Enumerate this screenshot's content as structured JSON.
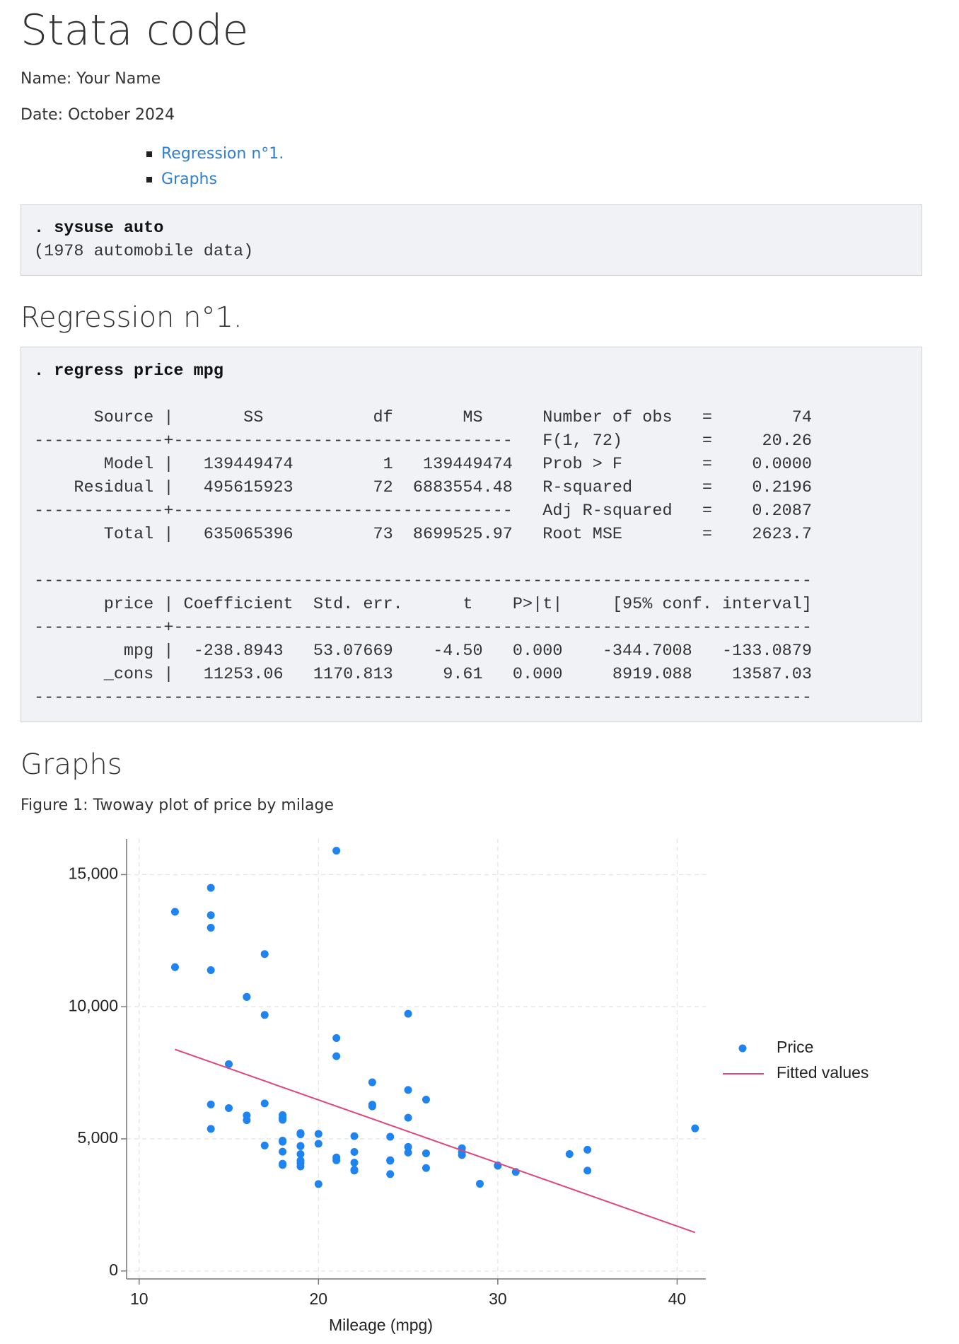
{
  "header": {
    "title": "Stata code",
    "name": "Name: Your Name",
    "date": "Date: October 2024"
  },
  "toc": [
    "Regression n°1.",
    "Graphs"
  ],
  "intro_output": {
    "command": ". sysuse auto",
    "lines": [
      "(1978 automobile data)"
    ]
  },
  "regression": {
    "heading": "Regression n°1.",
    "command": ". regress price mpg",
    "anova_lines": [
      "      Source |       SS           df       MS      Number of obs   =        74",
      "-------------+----------------------------------   F(1, 72)        =     20.26",
      "       Model |   139449474         1   139449474   Prob > F        =    0.0000",
      "    Residual |   495615923        72  6883554.48   R-squared       =    0.2196",
      "-------------+----------------------------------   Adj R-squared   =    0.2087",
      "       Total |   635065396        73  8699525.97   Root MSE        =    2623.7"
    ],
    "coef_lines": [
      "------------------------------------------------------------------------------",
      "       price | Coefficient  Std. err.      t    P>|t|     [95% conf. interval]",
      "-------------+----------------------------------------------------------------",
      "         mpg |  -238.8943   53.07669    -4.50   0.000    -344.7008   -133.0879",
      "       _cons |   11253.06   1170.813     9.61   0.000     8919.088    13587.03",
      "------------------------------------------------------------------------------"
    ]
  },
  "graphs": {
    "heading": "Graphs",
    "caption": "Figure 1: Twoway plot of price by milage"
  },
  "chart_data": {
    "type": "scatter",
    "x_label": "Mileage (mpg)",
    "xlim": [
      9.3,
      41.6
    ],
    "xticks": [
      10,
      20,
      30,
      40
    ],
    "ylim": [
      -300,
      16350
    ],
    "yticks": [
      0,
      {
        "value": 5000,
        "label": "5,000"
      },
      {
        "value": 10000,
        "label": "10,000"
      },
      {
        "value": 15000,
        "label": "15,000"
      }
    ],
    "grid": true,
    "legend": "right",
    "series": [
      {
        "name": "Price",
        "type": "scatter",
        "color": "#1f83f0",
        "x": [
          22,
          17,
          22,
          20,
          15,
          18,
          26,
          20,
          16,
          19,
          14,
          14,
          21,
          29,
          16,
          22,
          22,
          24,
          19,
          30,
          18,
          16,
          17,
          28,
          21,
          12,
          12,
          14,
          22,
          14,
          15,
          18,
          14,
          20,
          21,
          19,
          19,
          18,
          19,
          24,
          16,
          28,
          34,
          25,
          26,
          18,
          18,
          18,
          19,
          19,
          19,
          24,
          17,
          23,
          25,
          23,
          35,
          24,
          21,
          21,
          25,
          28,
          30,
          14,
          26,
          35,
          18,
          31,
          18,
          23,
          41,
          25,
          25,
          17
        ],
        "values": [
          4099,
          4749,
          3799,
          4816,
          7827,
          5788,
          4453,
          5189,
          10372,
          4082,
          11385,
          14500,
          15906,
          3299,
          5705,
          4504,
          5104,
          3667,
          3955,
          3984,
          4010,
          5886,
          6342,
          4389,
          4187,
          11497,
          13594,
          13466,
          3829,
          5379,
          6165,
          4516,
          6303,
          3291,
          8814,
          5172,
          4733,
          4890,
          4181,
          4195,
          10371,
          4647,
          4425,
          4482,
          6486,
          4060,
          5798,
          4934,
          5222,
          4723,
          4424,
          4172,
          9690,
          6295,
          9735,
          6229,
          4589,
          5079,
          8129,
          4296,
          5799,
          4499,
          3995,
          12990,
          3895,
          3798,
          5899,
          3748,
          5719,
          7140,
          5397,
          4697,
          6850,
          11995
        ]
      },
      {
        "name": "Fitted values",
        "type": "line",
        "color": "#e0457b",
        "x": [
          12,
          41
        ],
        "values": [
          8386.33,
          1458.39
        ]
      }
    ]
  }
}
